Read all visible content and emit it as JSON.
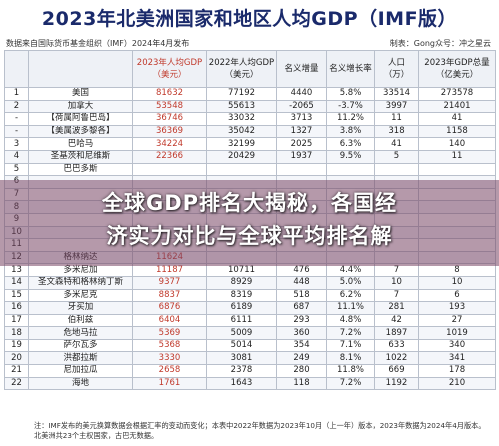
{
  "title": "2023年北美洲国家和地区人均GDP（IMF版）",
  "source": "数据来自国际货币基金组织（IMF）2024年4月发布",
  "credit": "制表：Gong众号：冲之星云",
  "headers": {
    "rank": "",
    "country": "",
    "gdp2023": "2023年人均GDP\n（美元）",
    "gdp2022": "2022年人均GDP\n（美元）",
    "change_abs": "名义增量",
    "change_pct": "名义增长率",
    "population": "人口\n（万）",
    "total_gdp": "2023年GDP总量\n（亿美元）"
  },
  "rows": [
    {
      "rank": "1",
      "country": "美国",
      "gdp2023": "81632",
      "gdp2022": "77192",
      "inc": "4440",
      "pct": "5.8%",
      "pop": "33514",
      "total": "273578"
    },
    {
      "rank": "2",
      "country": "加拿大",
      "gdp2023": "53548",
      "gdp2022": "55613",
      "inc": "-2065",
      "pct": "-3.7%",
      "pop": "3997",
      "total": "21401"
    },
    {
      "rank": "-",
      "country": "【荷属阿鲁巴岛】",
      "gdp2023": "36746",
      "gdp2022": "33032",
      "inc": "3713",
      "pct": "11.2%",
      "pop": "11",
      "total": "41"
    },
    {
      "rank": "-",
      "country": "【美属波多黎各】",
      "gdp2023": "36369",
      "gdp2022": "35042",
      "inc": "1327",
      "pct": "3.8%",
      "pop": "318",
      "total": "1158"
    },
    {
      "rank": "3",
      "country": "巴哈马",
      "gdp2023": "34224",
      "gdp2022": "32199",
      "inc": "2025",
      "pct": "6.3%",
      "pop": "41",
      "total": "140"
    },
    {
      "rank": "4",
      "country": "圣基茨和尼维斯",
      "gdp2023": "22366",
      "gdp2022": "20429",
      "inc": "1937",
      "pct": "9.5%",
      "pop": "5",
      "total": "11"
    },
    {
      "rank": "5",
      "country": "巴巴多斯",
      "gdp2023": "",
      "gdp2022": "",
      "inc": "",
      "pct": "",
      "pop": "",
      "total": ""
    },
    {
      "rank": "6",
      "country": "",
      "gdp2023": "",
      "gdp2022": "",
      "inc": "",
      "pct": "",
      "pop": "",
      "total": ""
    },
    {
      "rank": "7",
      "country": "",
      "gdp2023": "",
      "gdp2022": "",
      "inc": "",
      "pct": "",
      "pop": "",
      "total": ""
    },
    {
      "rank": "8",
      "country": "",
      "gdp2023": "",
      "gdp2022": "",
      "inc": "",
      "pct": "",
      "pop": "",
      "total": ""
    },
    {
      "rank": "9",
      "country": "",
      "gdp2023": "",
      "gdp2022": "",
      "inc": "",
      "pct": "",
      "pop": "",
      "total": ""
    },
    {
      "rank": "10",
      "country": "",
      "gdp2023": "",
      "gdp2022": "",
      "inc": "",
      "pct": "",
      "pop": "",
      "total": ""
    },
    {
      "rank": "11",
      "country": "",
      "gdp2023": "",
      "gdp2022": "",
      "inc": "",
      "pct": "",
      "pop": "",
      "total": ""
    },
    {
      "rank": "12",
      "country": "格林纳达",
      "gdp2023": "11624",
      "gdp2022": "",
      "inc": "",
      "pct": "",
      "pop": "",
      "total": ""
    },
    {
      "rank": "13",
      "country": "多米尼加",
      "gdp2023": "11187",
      "gdp2022": "10711",
      "inc": "476",
      "pct": "4.4%",
      "pop": "7",
      "total": "8"
    },
    {
      "rank": "14",
      "country": "圣文森特和格林纳丁斯",
      "gdp2023": "9377",
      "gdp2022": "8929",
      "inc": "448",
      "pct": "5.0%",
      "pop": "10",
      "total": "10"
    },
    {
      "rank": "15",
      "country": "多米尼克",
      "gdp2023": "8837",
      "gdp2022": "8319",
      "inc": "518",
      "pct": "6.2%",
      "pop": "7",
      "total": "6"
    },
    {
      "rank": "16",
      "country": "牙买加",
      "gdp2023": "6876",
      "gdp2022": "6189",
      "inc": "687",
      "pct": "11.1%",
      "pop": "281",
      "total": "193"
    },
    {
      "rank": "17",
      "country": "伯利兹",
      "gdp2023": "6404",
      "gdp2022": "6111",
      "inc": "293",
      "pct": "4.8%",
      "pop": "42",
      "total": "27"
    },
    {
      "rank": "18",
      "country": "危地马拉",
      "gdp2023": "5369",
      "gdp2022": "5009",
      "inc": "360",
      "pct": "7.2%",
      "pop": "1897",
      "total": "1019"
    },
    {
      "rank": "19",
      "country": "萨尔瓦多",
      "gdp2023": "5368",
      "gdp2022": "5014",
      "inc": "354",
      "pct": "7.1%",
      "pop": "633",
      "total": "340"
    },
    {
      "rank": "20",
      "country": "洪都拉斯",
      "gdp2023": "3330",
      "gdp2022": "3081",
      "inc": "249",
      "pct": "8.1%",
      "pop": "1022",
      "total": "341"
    },
    {
      "rank": "21",
      "country": "尼加拉瓜",
      "gdp2023": "2658",
      "gdp2022": "2378",
      "inc": "280",
      "pct": "11.8%",
      "pop": "669",
      "total": "178"
    },
    {
      "rank": "22",
      "country": "海地",
      "gdp2023": "1761",
      "gdp2022": "1643",
      "inc": "118",
      "pct": "7.2%",
      "pop": "1192",
      "total": "210"
    }
  ],
  "footnote_line1": "注：IMF发布的美元换算数据会根据汇率的变动而变化；本表中2022年数据为2023年10月（上一年）版本，2023年数据为2024年4月版本。",
  "footnote_line2": "北美洲共23个主权国家，古巴无数据。",
  "banner_line1": "全球GDP排名大揭秘，各国经",
  "banner_line2": "济实力对比与全球平均排名解"
}
